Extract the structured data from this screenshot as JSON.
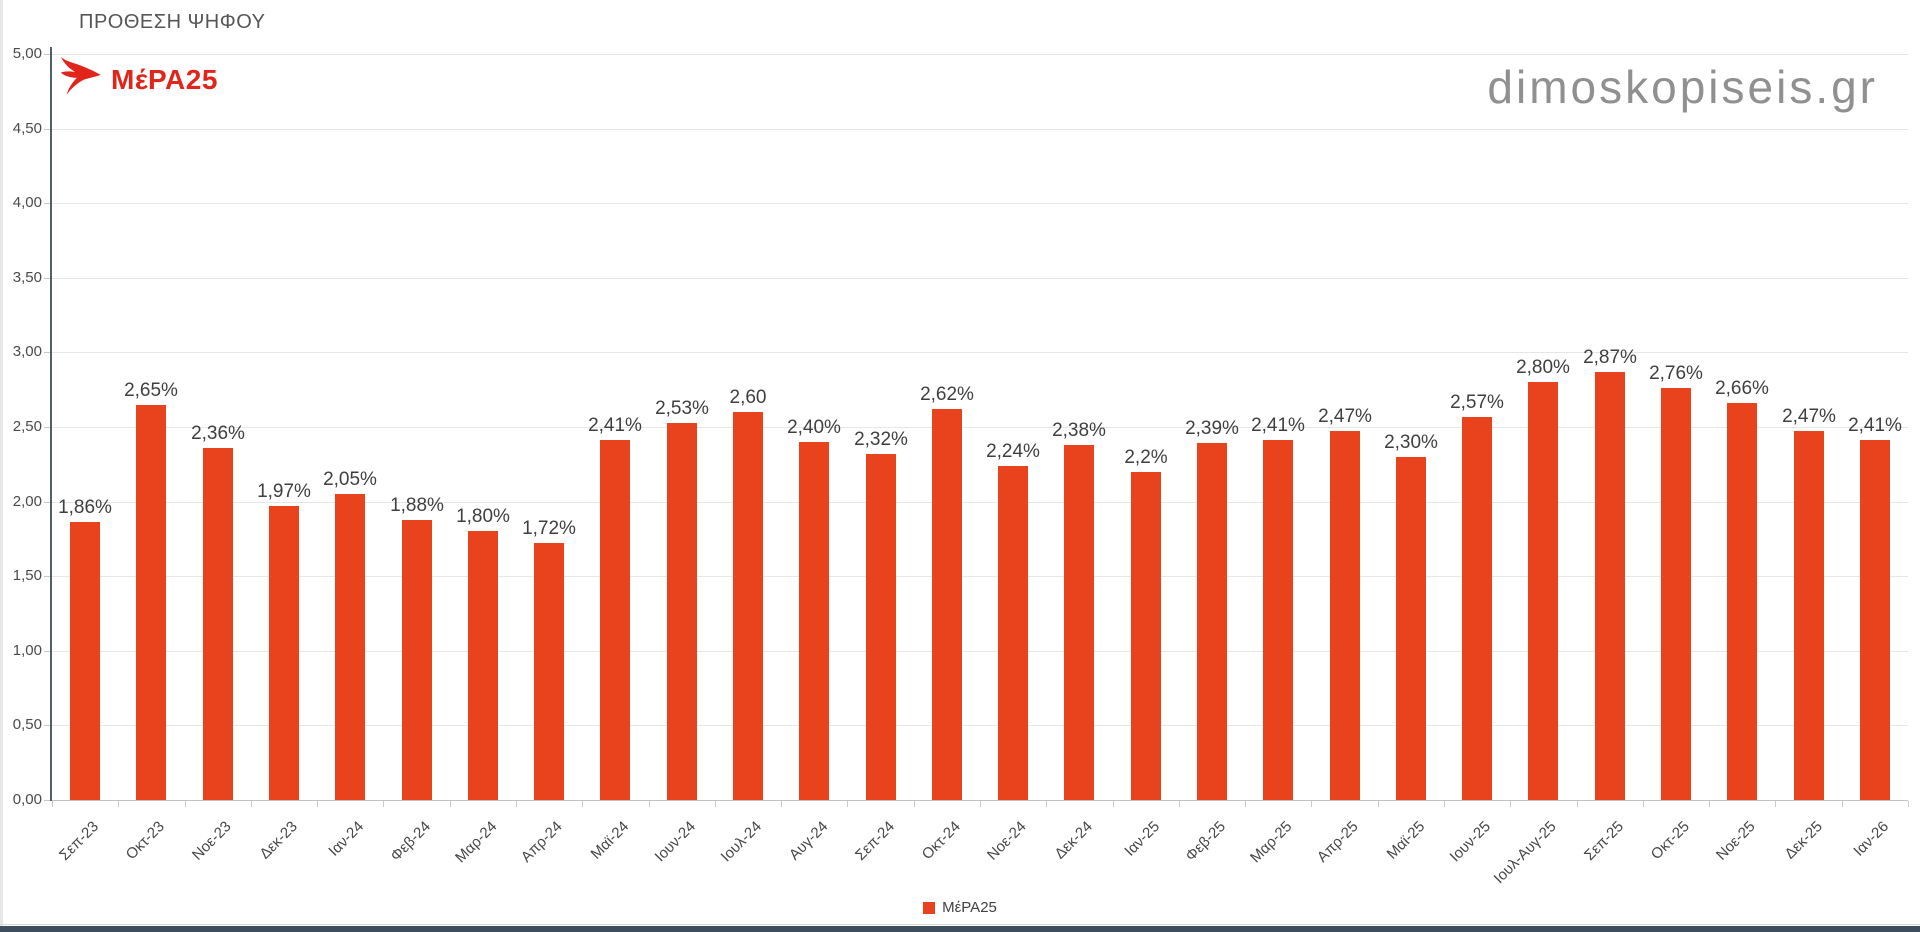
{
  "page": {
    "title": "ΠΡΟΘΕΣΗ ΨΗΦΟΥ",
    "watermark": "dimoskopiseis.gr",
    "logo_text": "ΜέΡΑ25"
  },
  "legend": {
    "label": "ΜέΡΑ25"
  },
  "colors": {
    "bar": "#e8431d",
    "logo_red": "#e1251b",
    "title_text": "#565656",
    "watermark": "#909090",
    "axis_line": "#4e5f70",
    "gridline": "#e6e6e6",
    "data_label": "#3f3f3f",
    "footer_bar": "#3e4e5e"
  },
  "chart_data": {
    "type": "bar",
    "title": "ΠΡΟΘΕΣΗ ΨΗΦΟΥ",
    "series_name": "ΜέΡΑ25",
    "legend_position": "bottom",
    "grid": true,
    "ylim": [
      0,
      5
    ],
    "ytick_step": 0.5,
    "ytick_labels": [
      "0,00",
      "0,50",
      "1,00",
      "1,50",
      "2,00",
      "2,50",
      "3,00",
      "3,50",
      "4,00",
      "4,50",
      "5,00"
    ],
    "categories": [
      "Σεπ-23",
      "Οκτ-23",
      "Νοε-23",
      "Δεκ-23",
      "Ιαν-24",
      "Φεβ-24",
      "Μαρ-24",
      "Απρ-24",
      "Μαϊ-24",
      "Ιουν-24",
      "Ιουλ-24",
      "Αυγ-24",
      "Σεπ-24",
      "Οκτ-24",
      "Νοε-24",
      "Δεκ-24",
      "Ιαν-25",
      "Φεβ-25",
      "Μαρ-25",
      "Απρ-25",
      "Μαϊ-25",
      "Ιουν-25",
      "Ιουλ-Αυγ-25",
      "Σεπ-25",
      "Οκτ-25",
      "Νοε-25",
      "Δεκ-25",
      "Ιαν-26"
    ],
    "values": [
      1.86,
      2.65,
      2.36,
      1.97,
      2.05,
      1.88,
      1.8,
      1.72,
      2.41,
      2.53,
      2.6,
      2.4,
      2.32,
      2.62,
      2.24,
      2.38,
      2.2,
      2.39,
      2.41,
      2.47,
      2.3,
      2.57,
      2.8,
      2.87,
      2.76,
      2.66,
      2.47,
      2.41
    ],
    "value_labels": [
      "1,86%",
      "2,65%",
      "2,36%",
      "1,97%",
      "2,05%",
      "1,88%",
      "1,80%",
      "1,72%",
      "2,41%",
      "2,53%",
      "2,60",
      "2,40%",
      "2,32%",
      "2,62%",
      "2,24%",
      "2,38%",
      "2,2%",
      "2,39%",
      "2,41%",
      "2,47%",
      "2,30%",
      "2,57%",
      "2,80%",
      "2,87%",
      "2,76%",
      "2,66%",
      "2,47%",
      "2,41%"
    ]
  }
}
